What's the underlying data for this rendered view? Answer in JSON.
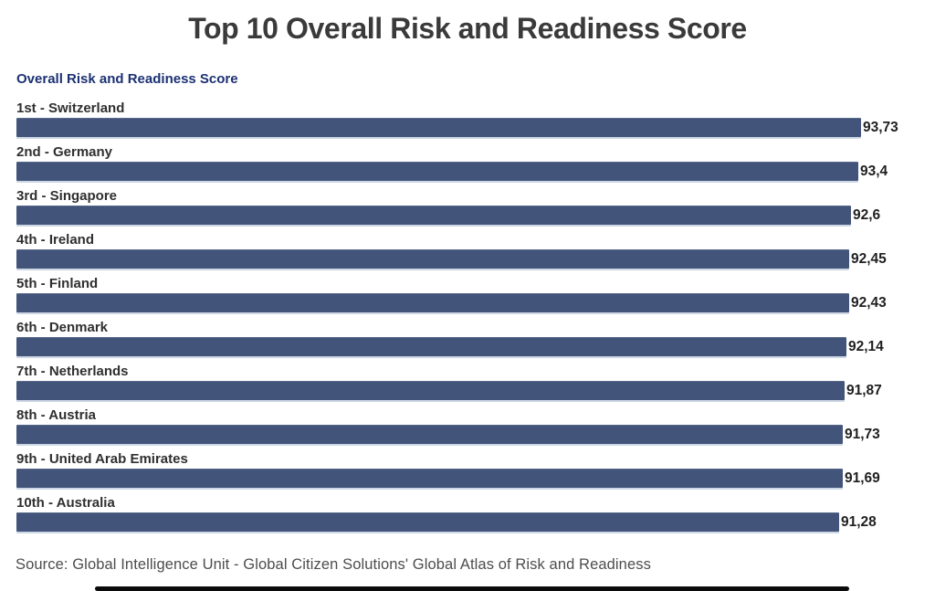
{
  "header": {
    "title": "Top 10 Overall Risk and Readiness Score"
  },
  "chart_data": {
    "type": "bar",
    "orientation": "horizontal",
    "title": "Overall Risk and Readiness Score",
    "categories": [
      "1st - Switzerland",
      "2nd - Germany",
      "3rd - Singapore",
      "4th - Ireland",
      "5th - Finland",
      "6th - Denmark",
      "7th - Netherlands",
      "8th - Austria",
      "9th - United Arab Emirates",
      "10th - Australia"
    ],
    "values": [
      93.73,
      93.4,
      92.6,
      92.45,
      92.43,
      92.14,
      91.87,
      91.73,
      91.69,
      91.28
    ],
    "value_labels": [
      "93,73",
      "93,4",
      "92,6",
      "92,45",
      "92,43",
      "92,14",
      "91,87",
      "91,73",
      "91,69",
      "91,28"
    ],
    "value_format": "comma-decimal",
    "bar_color": "#42547a",
    "axis": {
      "value_min": 0,
      "gridlines": false,
      "value_axis_visible": false,
      "labels_position": "above-bars",
      "values_position": "right-of-bars"
    }
  },
  "footer": {
    "source": "Source: Global Intelligence Unit - Global Citizen Solutions' Global Atlas of Risk and Readiness"
  },
  "colors": {
    "bar": "#42547a",
    "bar_bottom_edge": "#ccd6e4",
    "title": "#3a3a3a",
    "subtitle": "#1c3172",
    "category_label": "#2f2f2f",
    "value_label": "#1f1f1f",
    "source": "#4d4d4d",
    "bottom_bar": "#0a0a0a",
    "background": "#ffffff"
  }
}
